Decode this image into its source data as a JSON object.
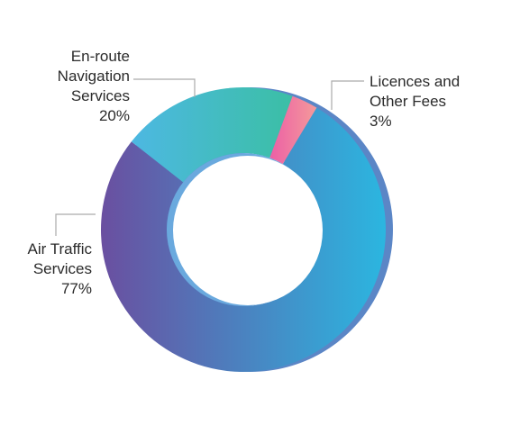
{
  "chart_data": {
    "type": "pie",
    "variant": "donut-3d",
    "title": "",
    "slices": [
      {
        "label_lines": [
          "Air Traffic",
          "Services"
        ],
        "value": 77,
        "value_label": "77%",
        "color_start": "#6a4fa0",
        "color_end": "#2bb6e0"
      },
      {
        "label_lines": [
          "En-route",
          "Navigation",
          "Services"
        ],
        "value": 20,
        "value_label": "20%",
        "color_start": "#4db8e2",
        "color_end": "#3bbfa5"
      },
      {
        "label_lines": [
          "Licences and",
          "Other Fees"
        ],
        "value": 3,
        "value_label": "3%",
        "color_start": "#ec5fa6",
        "color_end": "#f49a9a"
      }
    ]
  },
  "colors": {
    "leader": "#aaaaaa",
    "depth": "#5b86c6",
    "inner_depth": "#6aa9de"
  }
}
